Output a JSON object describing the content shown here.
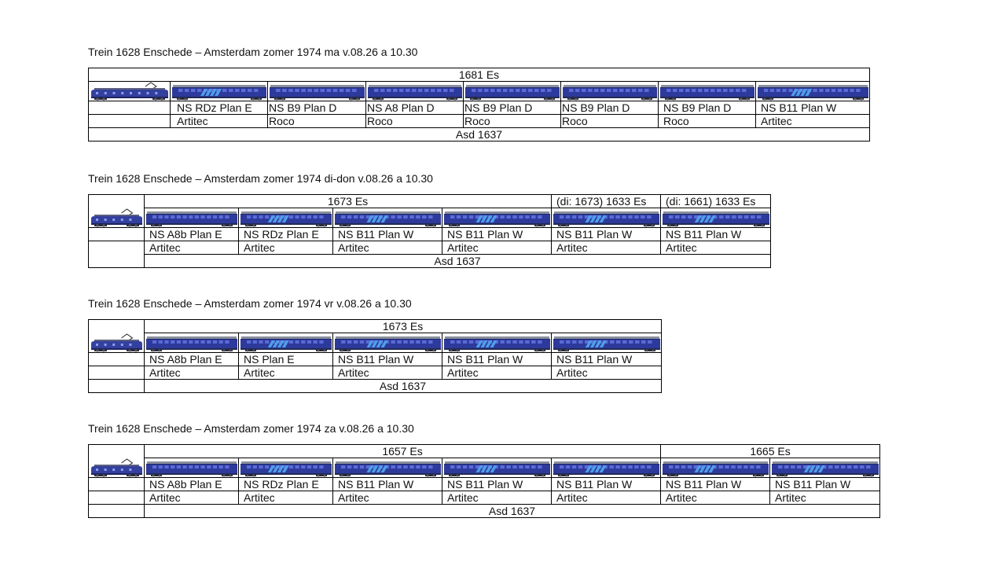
{
  "colors": {
    "car_body": "#2d3a9c",
    "car_roof": "#8a8f9c",
    "car_window": "#5a6bd8",
    "car_stripe": "#4f9ee8",
    "loco_body": "#34409e"
  },
  "blocks": [
    {
      "title": "Trein 1628 Enschede – Amsterdam zomer 1974 ma v.08.26  a 10.30",
      "destinations": [
        "1681 Es"
      ],
      "arrival": "Asd 1637",
      "cars": [
        {
          "type": "NS RDz Plan E",
          "maker": "Artitec",
          "variant": "stripe"
        },
        {
          "type": "NS B9 Plan D",
          "maker": "Roco",
          "variant": "plain"
        },
        {
          "type": "NS A8 Plan D",
          "maker": "Roco",
          "variant": "plain"
        },
        {
          "type": "NS B9 Plan D",
          "maker": "Roco",
          "variant": "plain"
        },
        {
          "type": "NS B9 Plan D",
          "maker": "Roco",
          "variant": "plain"
        },
        {
          "type": "NS B9 Plan D",
          "maker": "Roco",
          "variant": "plain"
        },
        {
          "type": "NS B11 Plan W",
          "maker": "Artitec",
          "variant": "stripe"
        }
      ]
    },
    {
      "title": "Trein 1628 Enschede – Amsterdam zomer 1974 di-don v.08.26 a 10.30",
      "destinations": [
        "1673 Es",
        "(di: 1673) 1633 Es",
        "(di: 1661) 1633 Es"
      ],
      "arrival": "Asd 1637",
      "cars": [
        {
          "type": "NS A8b Plan E",
          "maker": "Artitec",
          "variant": "plain"
        },
        {
          "type": "NS RDz Plan E",
          "maker": "Artitec",
          "variant": "stripe"
        },
        {
          "type": "NS B11 Plan W",
          "maker": "Artitec",
          "variant": "stripe"
        },
        {
          "type": "NS B11 Plan W",
          "maker": "Artitec",
          "variant": "stripe"
        },
        {
          "type": "NS B11 Plan W",
          "maker": "Artitec",
          "variant": "stripe"
        },
        {
          "type": "NS B11 Plan W",
          "maker": "Artitec",
          "variant": "stripe"
        }
      ]
    },
    {
      "title": "Trein 1628 Enschede – Amsterdam zomer 1974 vr v.08.26 a 10.30",
      "destinations": [
        "1673 Es"
      ],
      "arrival": "Asd 1637",
      "cars": [
        {
          "type": "NS A8b Plan E",
          "maker": "Artitec",
          "variant": "plain"
        },
        {
          "type": "NS Plan E",
          "maker": "Artitec",
          "variant": "stripe"
        },
        {
          "type": "NS B11 Plan W",
          "maker": "Artitec",
          "variant": "stripe"
        },
        {
          "type": "NS B11 Plan W",
          "maker": "Artitec",
          "variant": "stripe"
        },
        {
          "type": "NS B11 Plan W",
          "maker": "Artitec",
          "variant": "stripe"
        }
      ]
    },
    {
      "title": "Trein 1628 Enschede – Amsterdam zomer 1974 za v.08.26 a 10.30",
      "destinations": [
        "1657 Es",
        "1665 Es"
      ],
      "arrival": "Asd 1637",
      "cars": [
        {
          "type": "NS A8b Plan E",
          "maker": "Artitec",
          "variant": "plain"
        },
        {
          "type": "NS RDz Plan E",
          "maker": "Artitec",
          "variant": "stripe"
        },
        {
          "type": "NS B11 Plan W",
          "maker": "Artitec",
          "variant": "stripe"
        },
        {
          "type": "NS B11 Plan W",
          "maker": "Artitec",
          "variant": "stripe"
        },
        {
          "type": "NS B11 Plan W",
          "maker": "Artitec",
          "variant": "stripe"
        },
        {
          "type": "NS B11 Plan W",
          "maker": "Artitec",
          "variant": "stripe"
        },
        {
          "type": "NS B11 Plan W",
          "maker": "Artitec",
          "variant": "stripe"
        }
      ]
    }
  ]
}
